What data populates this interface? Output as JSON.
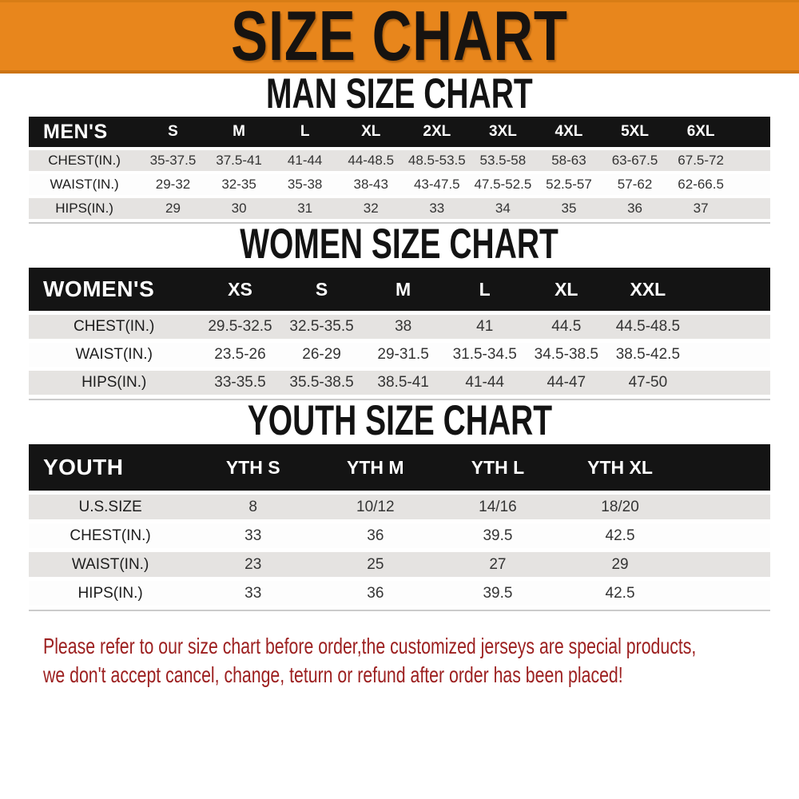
{
  "banner": {
    "title": "SIZE CHART"
  },
  "sections": [
    {
      "title": "MAN SIZE CHART",
      "corner": "MEN'S",
      "sizes": [
        "S",
        "M",
        "L",
        "XL",
        "2XL",
        "3XL",
        "4XL",
        "5XL",
        "6XL"
      ],
      "rows": [
        {
          "label": "CHEST(IN.)",
          "values": [
            "35-37.5",
            "37.5-41",
            "41-44",
            "44-48.5",
            "48.5-53.5",
            "53.5-58",
            "58-63",
            "63-67.5",
            "67.5-72"
          ]
        },
        {
          "label": "WAIST(IN.)",
          "values": [
            "29-32",
            "32-35",
            "35-38",
            "38-43",
            "43-47.5",
            "47.5-52.5",
            "52.5-57",
            "57-62",
            "62-66.5"
          ]
        },
        {
          "label": "HIPS(IN.)",
          "values": [
            "29",
            "30",
            "31",
            "32",
            "33",
            "34",
            "35",
            "36",
            "37"
          ]
        }
      ]
    },
    {
      "title": "WOMEN SIZE CHART",
      "corner": "WOMEN'S",
      "sizes": [
        "XS",
        "S",
        "M",
        "L",
        "XL",
        "XXL"
      ],
      "rows": [
        {
          "label": "CHEST(IN.)",
          "values": [
            "29.5-32.5",
            "32.5-35.5",
            "38",
            "41",
            "44.5",
            "44.5-48.5"
          ]
        },
        {
          "label": "WAIST(IN.)",
          "values": [
            "23.5-26",
            "26-29",
            "29-31.5",
            "31.5-34.5",
            "34.5-38.5",
            "38.5-42.5"
          ]
        },
        {
          "label": "HIPS(IN.)",
          "values": [
            "33-35.5",
            "35.5-38.5",
            "38.5-41",
            "41-44",
            "44-47",
            "47-50"
          ]
        }
      ]
    },
    {
      "title": "YOUTH SIZE CHART",
      "corner": "YOUTH",
      "sizes": [
        "YTH S",
        "YTH M",
        "YTH L",
        "YTH XL"
      ],
      "rows": [
        {
          "label": "U.S.SIZE",
          "values": [
            "8",
            "10/12",
            "14/16",
            "18/20"
          ]
        },
        {
          "label": "CHEST(IN.)",
          "values": [
            "33",
            "36",
            "39.5",
            "42.5"
          ]
        },
        {
          "label": "WAIST(IN.)",
          "values": [
            "23",
            "25",
            "27",
            "29"
          ]
        },
        {
          "label": "HIPS(IN.)",
          "values": [
            "33",
            "36",
            "39.5",
            "42.5"
          ]
        }
      ]
    }
  ],
  "footer": {
    "line1": "Please refer to our size chart before order,the customized jerseys are special products,",
    "line2": "we don't accept cancel, change, teturn or refund after order has been placed!"
  },
  "colors": {
    "banner_bg": "#E8861C",
    "table_header_bg": "#141414",
    "row_alt_bg": "#E5E3E1",
    "footer_text": "#9C1F1F"
  }
}
